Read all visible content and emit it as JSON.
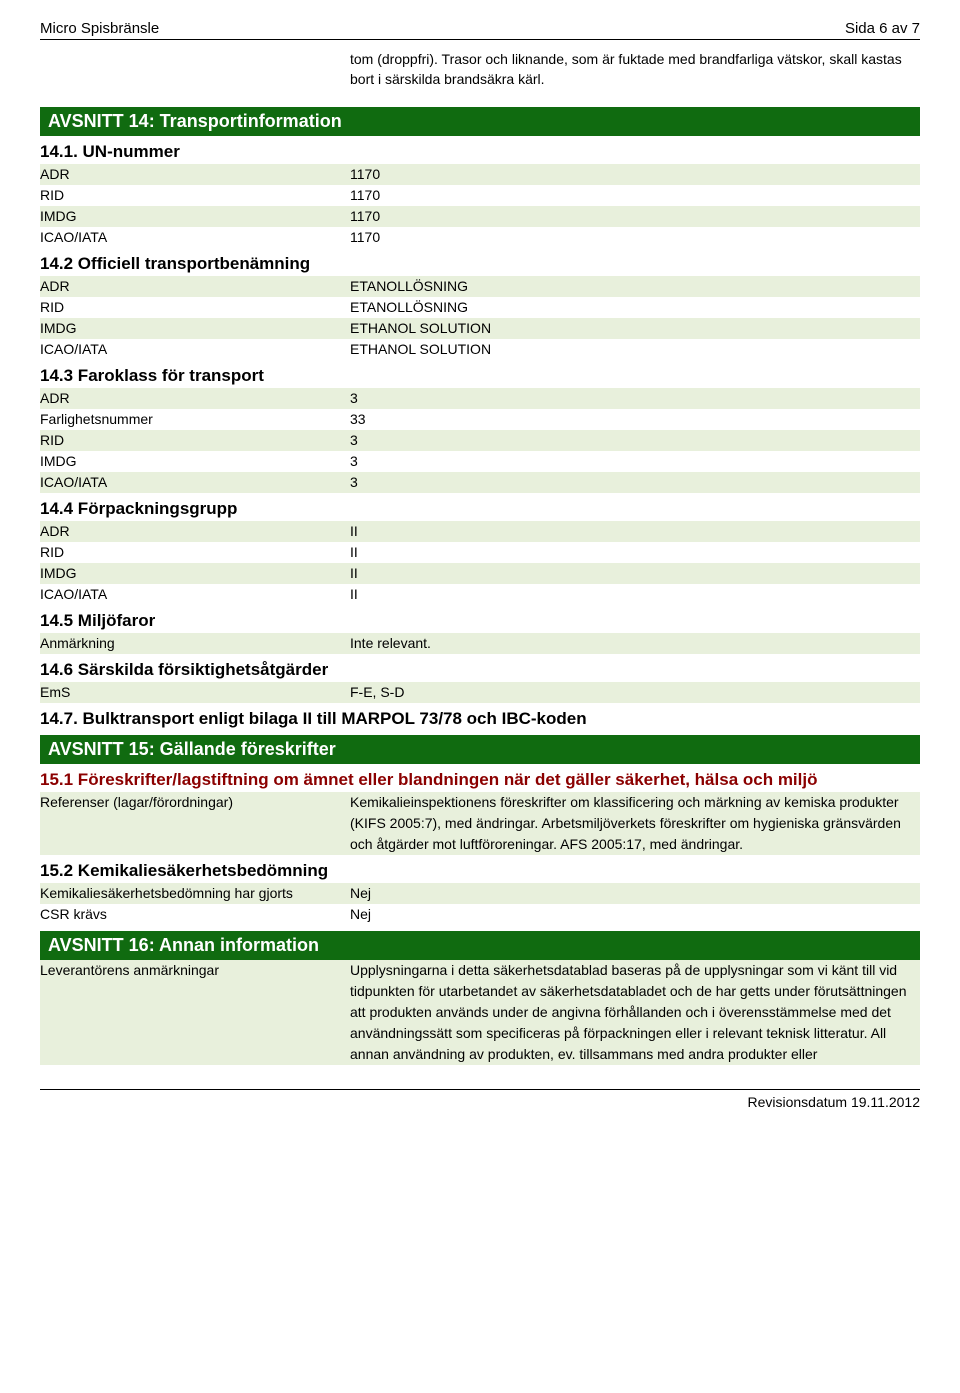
{
  "header": {
    "product": "Micro Spisbränsle",
    "pageinfo": "Sida 6 av 7"
  },
  "intro_text": "tom (droppfri). Trasor och liknande, som är fuktade med brandfarliga vätskor, skall kastas bort i särskilda brandsäkra kärl.",
  "sec14": {
    "title": "AVSNITT 14: Transportinformation",
    "s1": {
      "heading": "14.1. UN-nummer",
      "rows": [
        {
          "k": "ADR",
          "v": "1170"
        },
        {
          "k": "RID",
          "v": "1170"
        },
        {
          "k": "IMDG",
          "v": "1170"
        },
        {
          "k": "ICAO/IATA",
          "v": "1170"
        }
      ]
    },
    "s2": {
      "heading": "14.2 Officiell transportbenämning",
      "rows": [
        {
          "k": "ADR",
          "v": "ETANOLLÖSNING"
        },
        {
          "k": "RID",
          "v": "ETANOLLÖSNING"
        },
        {
          "k": "IMDG",
          "v": "ETHANOL SOLUTION"
        },
        {
          "k": "ICAO/IATA",
          "v": "ETHANOL SOLUTION"
        }
      ]
    },
    "s3": {
      "heading": "14.3 Faroklass för transport",
      "rows": [
        {
          "k": "ADR",
          "v": "3"
        },
        {
          "k": "Farlighetsnummer",
          "v": "33"
        },
        {
          "k": "RID",
          "v": "3"
        },
        {
          "k": "IMDG",
          "v": "3"
        },
        {
          "k": "ICAO/IATA",
          "v": "3"
        }
      ]
    },
    "s4": {
      "heading": "14.4 Förpackningsgrupp",
      "rows": [
        {
          "k": "ADR",
          "v": "II"
        },
        {
          "k": "RID",
          "v": "II"
        },
        {
          "k": "IMDG",
          "v": "II"
        },
        {
          "k": "ICAO/IATA",
          "v": "II"
        }
      ]
    },
    "s5": {
      "heading": "14.5 Miljöfaror",
      "rows": [
        {
          "k": "Anmärkning",
          "v": "Inte relevant."
        }
      ]
    },
    "s6": {
      "heading": "14.6 Särskilda försiktighetsåtgärder",
      "rows": [
        {
          "k": "EmS",
          "v": "F-E, S-D"
        }
      ]
    },
    "s7": {
      "heading": "14.7. Bulktransport enligt bilaga II till MARPOL 73/78 och IBC-koden"
    }
  },
  "sec15": {
    "title": "AVSNITT 15: Gällande föreskrifter",
    "s1": {
      "heading": "15.1 Föreskrifter/lagstiftning om ämnet eller blandningen när det gäller säkerhet, hälsa och miljö",
      "rows": [
        {
          "k": "Referenser (lagar/förordningar)",
          "v": "Kemikalieinspektionens föreskrifter om klassificering och märkning av kemiska produkter (KIFS 2005:7), med ändringar. Arbetsmiljöverkets föreskrifter om hygieniska gränsvärden och åtgärder mot luftföroreningar. AFS 2005:17, med ändringar."
        }
      ]
    },
    "s2": {
      "heading": "15.2 Kemikaliesäkerhetsbedömning",
      "rows": [
        {
          "k": "Kemikaliesäkerhetsbedömning har gjorts",
          "v": "Nej"
        },
        {
          "k": "CSR krävs",
          "v": "Nej"
        }
      ]
    }
  },
  "sec16": {
    "title": "AVSNITT 16: Annan information",
    "rows": [
      {
        "k": "Leverantörens anmärkningar",
        "v": "Upplysningarna i detta säkerhetsdatablad baseras på de upplysningar som vi känt till vid tidpunkten för utarbetandet av säkerhetsdatabladet och de har getts under förutsättningen att produkten används under de angivna förhållanden och i överensstämmelse med det användningssätt som specificeras på förpackningen eller i relevant teknisk litteratur. All annan användning av produkten, ev. tillsammans med andra produkter eller"
      }
    ]
  },
  "footer": {
    "revision": "Revisionsdatum 19.11.2012"
  }
}
